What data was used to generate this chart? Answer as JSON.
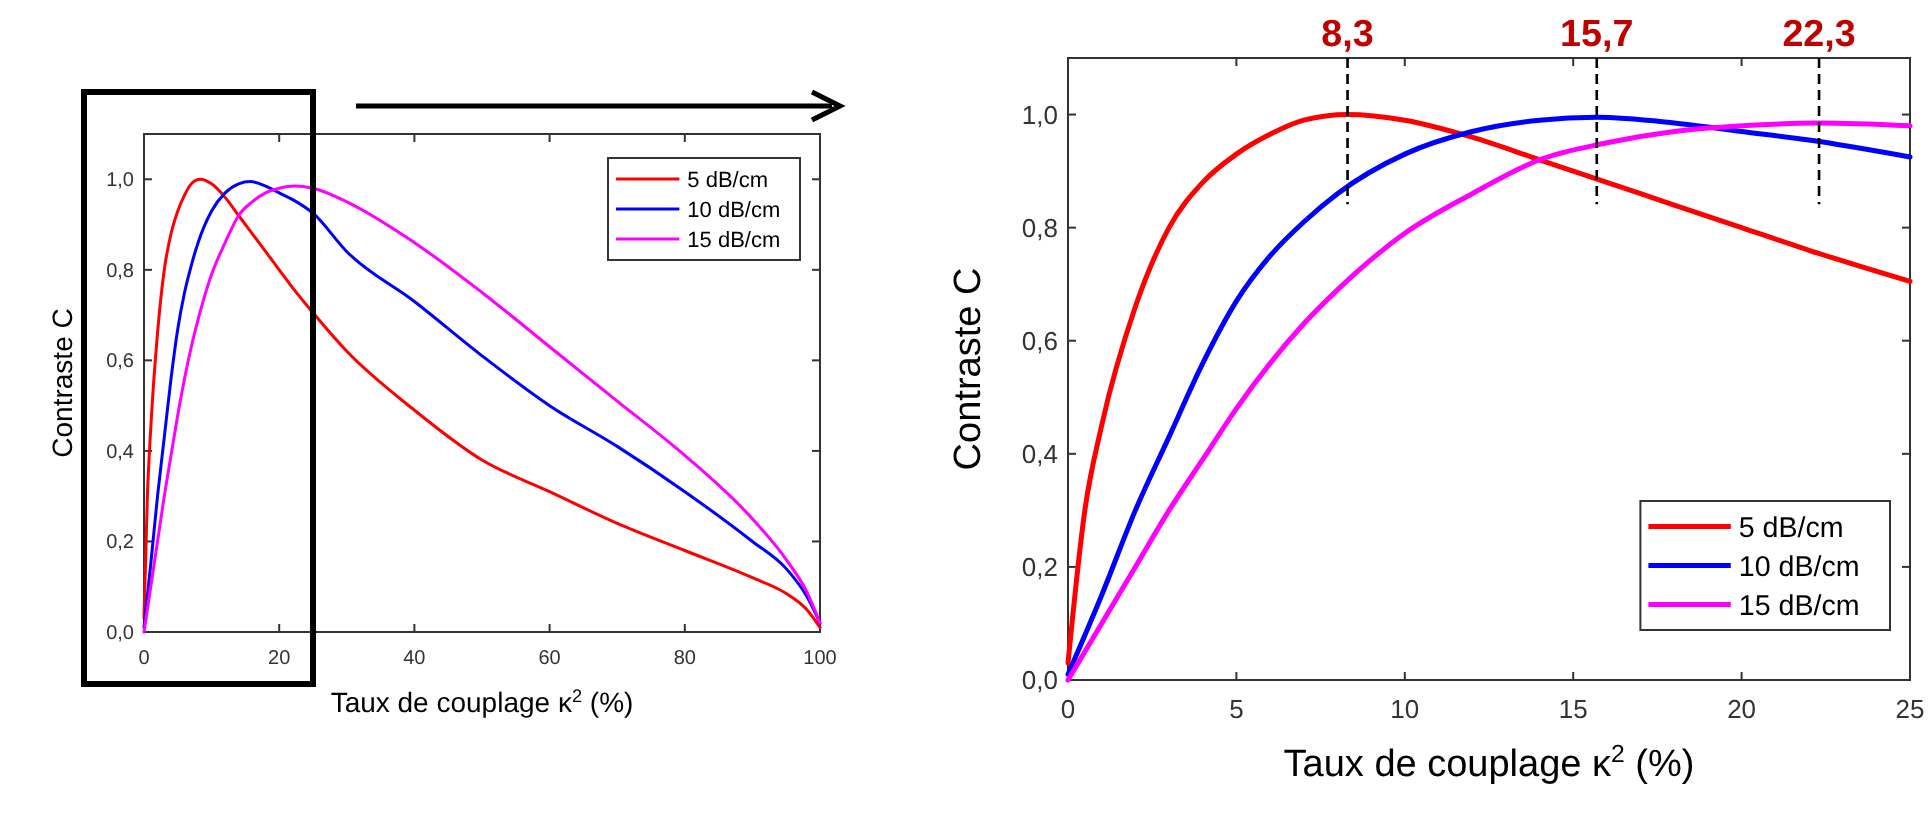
{
  "chart_data": [
    {
      "type": "line",
      "xlabel": "Taux de couplage κ$^{2}$ (%)",
      "ylabel": "Contraste C",
      "xlim": [
        0,
        100
      ],
      "ylim": [
        0,
        1.1
      ],
      "xticks": [
        0,
        20,
        40,
        60,
        80,
        100
      ],
      "yticks": [
        {
          "value": 0,
          "label": "0,0"
        },
        {
          "value": 0.2,
          "label": "0,2"
        },
        {
          "value": 0.4,
          "label": "0,4"
        },
        {
          "value": 0.6,
          "label": "0,6"
        },
        {
          "value": 0.8,
          "label": "0,8"
        },
        {
          "value": 1.0,
          "label": "1,0"
        }
      ],
      "legend": "top right",
      "grid": false,
      "marker": "none",
      "line_style": "solid",
      "series": [
        {
          "name": "5 dB/cm",
          "color": "#ff0000",
          "x": [
            0,
            0.5,
            1,
            2,
            3,
            4,
            5,
            6,
            7,
            8.3,
            10,
            12,
            14,
            16,
            18,
            20,
            22,
            25,
            30,
            40,
            50,
            60,
            70,
            80,
            90,
            95,
            98,
            100
          ],
          "values": [
            0.03,
            0.3,
            0.45,
            0.66,
            0.8,
            0.88,
            0.93,
            0.965,
            0.99,
            1.0,
            0.99,
            0.96,
            0.92,
            0.88,
            0.84,
            0.8,
            0.76,
            0.705,
            0.62,
            0.49,
            0.38,
            0.31,
            0.24,
            0.18,
            0.12,
            0.085,
            0.05,
            0.01
          ]
        },
        {
          "name": "10 dB/cm",
          "color": "#0000ff",
          "x": [
            0,
            1,
            2,
            3,
            4,
            5,
            6,
            7,
            8,
            10,
            12,
            14,
            15.7,
            18,
            20,
            22,
            25,
            30,
            40,
            50,
            60,
            70,
            80,
            90,
            95,
            98,
            100
          ],
          "values": [
            0.01,
            0.15,
            0.3,
            0.43,
            0.56,
            0.67,
            0.75,
            0.81,
            0.86,
            0.93,
            0.97,
            0.99,
            0.995,
            0.985,
            0.97,
            0.955,
            0.925,
            0.84,
            0.73,
            0.61,
            0.5,
            0.41,
            0.31,
            0.2,
            0.14,
            0.08,
            0.02
          ]
        },
        {
          "name": "15 dB/cm",
          "color": "#ff00ff",
          "x": [
            0,
            1,
            2,
            3,
            4,
            5,
            6,
            7,
            8,
            10,
            12,
            14,
            16,
            18,
            20,
            22.3,
            25,
            30,
            40,
            50,
            60,
            70,
            80,
            90,
            95,
            98,
            100
          ],
          "values": [
            0.0,
            0.1,
            0.2,
            0.3,
            0.39,
            0.48,
            0.56,
            0.63,
            0.69,
            0.79,
            0.86,
            0.92,
            0.95,
            0.97,
            0.98,
            0.985,
            0.98,
            0.95,
            0.86,
            0.75,
            0.63,
            0.51,
            0.39,
            0.25,
            0.16,
            0.09,
            0.02
          ]
        }
      ]
    },
    {
      "type": "line",
      "xlabel": "Taux de couplage κ$^{2}$ (%)",
      "ylabel": "Contraste C",
      "xlim": [
        0,
        25
      ],
      "ylim": [
        0,
        1.1
      ],
      "xticks": [
        0,
        5,
        10,
        15,
        20,
        25
      ],
      "yticks": [
        {
          "value": 0,
          "label": "0,0"
        },
        {
          "value": 0.2,
          "label": "0,2"
        },
        {
          "value": 0.4,
          "label": "0,4"
        },
        {
          "value": 0.6,
          "label": "0,6"
        },
        {
          "value": 0.8,
          "label": "0,8"
        },
        {
          "value": 1.0,
          "label": "1,0"
        }
      ],
      "legend": "bottom right",
      "grid": false,
      "marker": "none",
      "line_style": "solid",
      "ref_lines": [
        {
          "axis": "x",
          "value": 8.3,
          "label": "8,3",
          "line_style": "dashed"
        },
        {
          "axis": "x",
          "value": 15.7,
          "label": "15,7",
          "line_style": "dashed"
        },
        {
          "axis": "x",
          "value": 22.3,
          "label": "22,3",
          "line_style": "dashed"
        }
      ],
      "series": [
        {
          "name": "5 dB/cm",
          "color": "#ff0000",
          "x": [
            0,
            0.5,
            1,
            2,
            3,
            4,
            5,
            6,
            7,
            8.3,
            10,
            12,
            14,
            16,
            18,
            20,
            22,
            25
          ],
          "values": [
            0.03,
            0.3,
            0.45,
            0.66,
            0.8,
            0.88,
            0.93,
            0.965,
            0.99,
            1.0,
            0.99,
            0.96,
            0.92,
            0.88,
            0.84,
            0.8,
            0.76,
            0.705
          ]
        },
        {
          "name": "10 dB/cm",
          "color": "#0000ff",
          "x": [
            0,
            1,
            2,
            3,
            4,
            5,
            6,
            7,
            8,
            10,
            12,
            14,
            15.7,
            18,
            20,
            22,
            25
          ],
          "values": [
            0.01,
            0.15,
            0.3,
            0.43,
            0.56,
            0.67,
            0.75,
            0.81,
            0.86,
            0.93,
            0.97,
            0.99,
            0.995,
            0.985,
            0.97,
            0.955,
            0.925
          ]
        },
        {
          "name": "15 dB/cm",
          "color": "#ff00ff",
          "x": [
            0,
            1,
            2,
            3,
            4,
            5,
            6,
            7,
            8,
            10,
            12,
            14,
            16,
            18,
            20,
            22.3,
            25
          ],
          "values": [
            0.0,
            0.1,
            0.2,
            0.3,
            0.39,
            0.48,
            0.56,
            0.63,
            0.69,
            0.79,
            0.86,
            0.92,
            0.95,
            0.97,
            0.98,
            0.985,
            0.98
          ]
        }
      ]
    }
  ]
}
